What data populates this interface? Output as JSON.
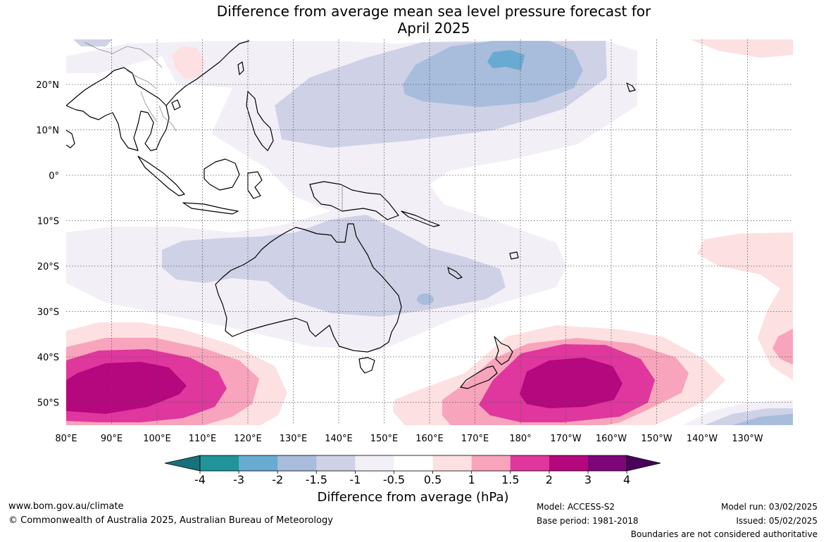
{
  "title_line1": "Difference from average mean sea level pressure forecast for",
  "title_line2": "April 2025",
  "map": {
    "lat_labels": [
      "20°N",
      "10°N",
      "0°",
      "10°S",
      "20°S",
      "30°S",
      "40°S",
      "50°S"
    ],
    "lon_labels": [
      "80°E",
      "90°E",
      "100°E",
      "110°E",
      "120°E",
      "130°E",
      "140°E",
      "150°E",
      "160°E",
      "170°E",
      "180°",
      "170°W",
      "160°W",
      "150°W",
      "140°W",
      "130°W"
    ]
  },
  "colorbar": {
    "title": "Difference from average (hPa)",
    "tick_labels": [
      "-4",
      "-3",
      "-2",
      "-1.5",
      "-1",
      "-0.5",
      "0.5",
      "1",
      "1.5",
      "2",
      "3",
      "4"
    ],
    "colors": [
      "#17717a",
      "#1f9499",
      "#69aad1",
      "#a8bcdc",
      "#cfd1e6",
      "#f3eff7",
      "#ffffff",
      "#fde0e1",
      "#f8a4bc",
      "#df379e",
      "#b5077e",
      "#7d0679",
      "#4a015c"
    ]
  },
  "footer": {
    "website": "www.bom.gov.au/climate",
    "copyright": "© Commonwealth of Australia 2025, Australian Bureau of Meteorology",
    "model": "Model: ACCESS-S2",
    "base_period": "Base period: 1981-2018",
    "model_run": "Model run: 03/02/2025",
    "issued": "Issued: 05/02/2025",
    "disclaimer": "Boundaries are not considered authoritative"
  }
}
